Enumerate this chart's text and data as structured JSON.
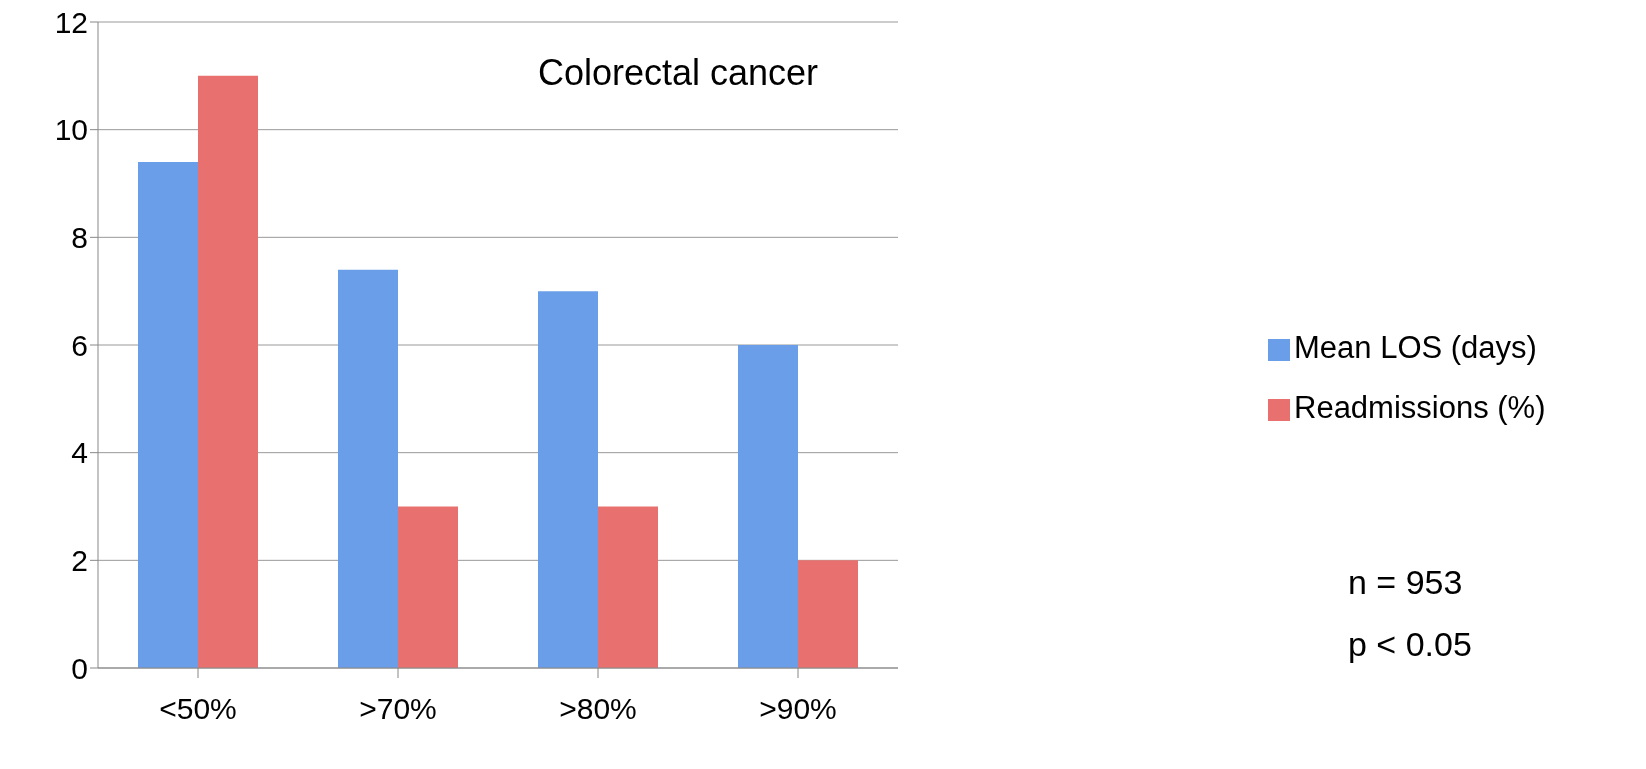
{
  "chart_data": {
    "type": "bar",
    "title": "Colorectal cancer",
    "categories": [
      "<50%",
      ">70%",
      ">80%",
      ">90%"
    ],
    "series": [
      {
        "name": "Mean LOS (days)",
        "color": "#6b9ee8",
        "values": [
          9.4,
          7.4,
          7,
          6
        ]
      },
      {
        "name": "Readmissions (%)",
        "color": "#e8706e",
        "values": [
          11,
          3,
          3,
          2
        ]
      }
    ],
    "ylim": [
      0,
      12
    ],
    "yticks": [
      0,
      2,
      4,
      6,
      8,
      10,
      12
    ],
    "grid": "y",
    "legend": "right",
    "annotations": [
      "n = 953",
      "p < 0.05"
    ]
  }
}
